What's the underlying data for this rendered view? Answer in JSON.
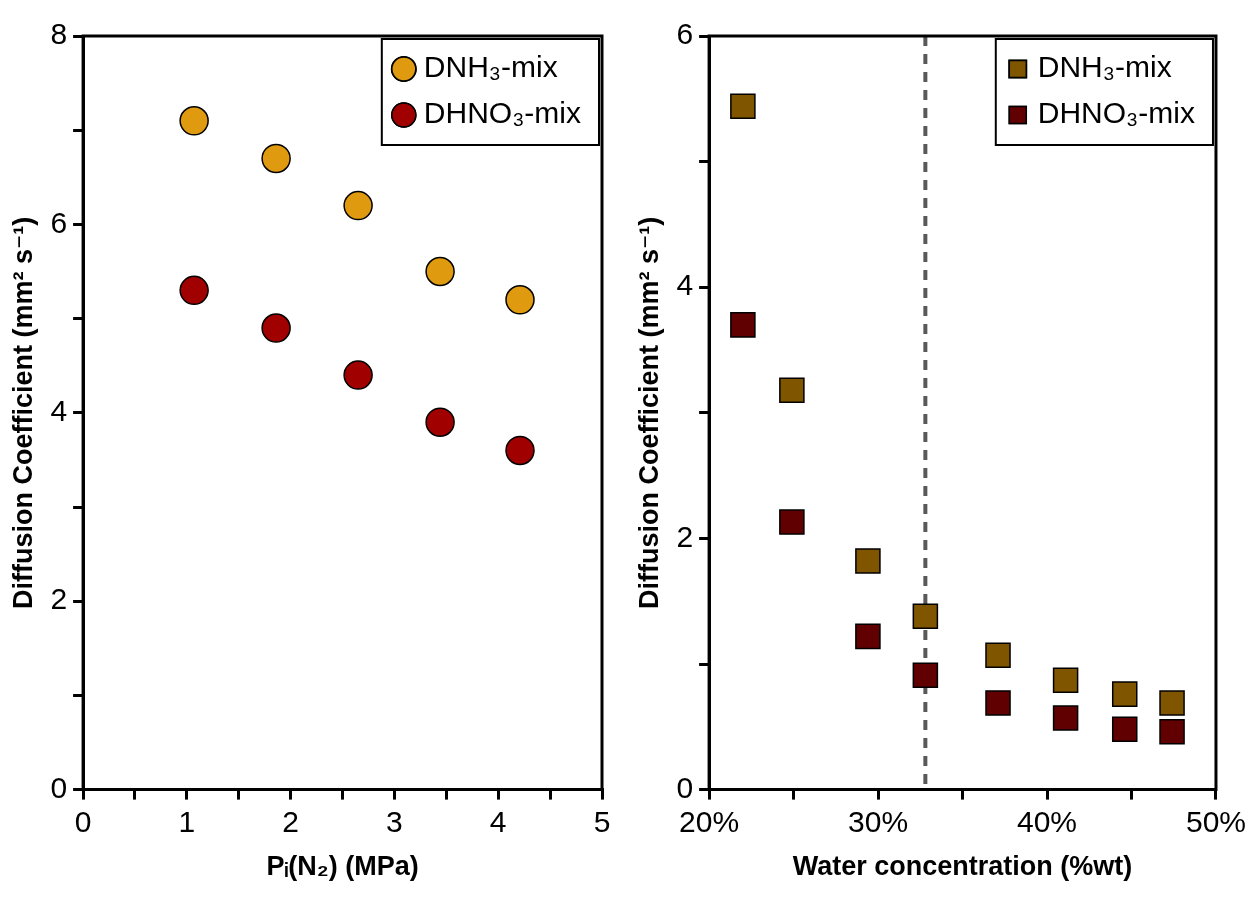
{
  "chart_data": [
    {
      "type": "scatter",
      "xlabel": "Pᵢ(N₂) (MPa)",
      "ylabel": "Diffusion Coefficient (mm² s⁻¹)",
      "xlim": [
        0,
        5
      ],
      "xticks": [
        0,
        {
          "value": 0.5,
          "label": null
        },
        1,
        {
          "value": 1.5,
          "label": null
        },
        2,
        {
          "value": 2.5,
          "label": null
        },
        3,
        {
          "value": 3.5,
          "label": null
        },
        4,
        {
          "value": 4.5,
          "label": null
        },
        5
      ],
      "ylim": [
        0,
        8
      ],
      "yticks": [
        0,
        {
          "value": 1,
          "label": null
        },
        2,
        {
          "value": 3,
          "label": null
        },
        4,
        {
          "value": 5,
          "label": null
        },
        6,
        {
          "value": 7,
          "label": null
        },
        8
      ],
      "grid": false,
      "legend": "top right",
      "marker": "circle",
      "series": [
        {
          "name": "DNH₃-mix",
          "color": "#e09a10",
          "x": [
            1.07,
            1.86,
            2.65,
            3.44,
            4.21
          ],
          "values": [
            7.1,
            6.7,
            6.2,
            5.5,
            5.2
          ]
        },
        {
          "name": "DHNO₃-mix",
          "color": "#a00000",
          "x": [
            1.07,
            1.86,
            2.65,
            3.44,
            4.21
          ],
          "values": [
            5.3,
            4.9,
            4.4,
            3.9,
            3.6
          ]
        }
      ]
    },
    {
      "type": "scatter",
      "xlabel": "Water concentration (%wt)",
      "ylabel": "Diffusion Coefficient (mm² s⁻¹)",
      "xlim": [
        20,
        50
      ],
      "xticks": [
        {
          "value": 20,
          "label": "20%"
        },
        {
          "value": 25,
          "label": null
        },
        {
          "value": 30,
          "label": "30%"
        },
        {
          "value": 35,
          "label": null
        },
        {
          "value": 40,
          "label": "40%"
        },
        {
          "value": 45,
          "label": null
        },
        {
          "value": 50,
          "label": "50%"
        }
      ],
      "ylim": [
        0,
        6
      ],
      "yticks": [
        0,
        {
          "value": 1,
          "label": null
        },
        2,
        {
          "value": 3,
          "label": null
        },
        4,
        {
          "value": 5,
          "label": null
        },
        6
      ],
      "grid": false,
      "legend": "top right",
      "marker": "square",
      "ref_lines": [
        {
          "axis": "x",
          "value": 32.8,
          "color": "#595959",
          "line_style": "dashed"
        }
      ],
      "series": [
        {
          "name": "DNH₃-mix",
          "color": "#7f5500",
          "x": [
            22,
            24.9,
            29.4,
            32.8,
            37.1,
            41.1,
            44.6,
            47.4
          ],
          "values": [
            5.44,
            3.18,
            1.82,
            1.38,
            1.07,
            0.87,
            0.76,
            0.69
          ]
        },
        {
          "name": "DHNO₃-mix",
          "color": "#600000",
          "x": [
            22,
            24.9,
            29.4,
            32.8,
            37.1,
            41.1,
            44.6,
            47.4
          ],
          "values": [
            3.7,
            2.13,
            1.22,
            0.91,
            0.69,
            0.57,
            0.48,
            0.46
          ]
        }
      ]
    }
  ]
}
